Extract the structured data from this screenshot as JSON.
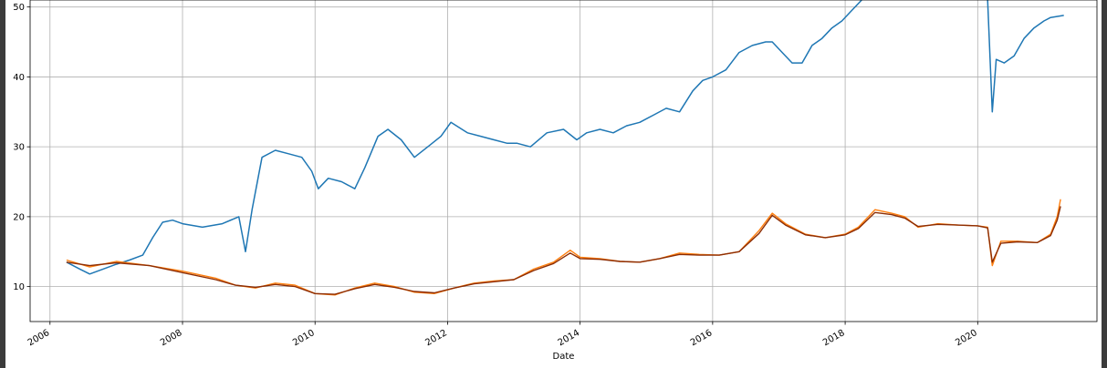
{
  "chart_data": {
    "type": "line",
    "title": "",
    "xlabel": "Date",
    "ylabel": "",
    "grid": true,
    "legend": "none",
    "xlim": [
      2005.7,
      2021.8
    ],
    "ylim": [
      5,
      51
    ],
    "x_ticks": [
      "2006",
      "2008",
      "2010",
      "2012",
      "2014",
      "2016",
      "2018",
      "2020"
    ],
    "y_ticks": [
      "10",
      "20",
      "30",
      "40",
      "50"
    ],
    "series": [
      {
        "color": "#1f77b4",
        "x": [
          2006.25,
          2006.45,
          2006.6,
          2006.8,
          2007.0,
          2007.2,
          2007.4,
          2007.55,
          2007.7,
          2007.85,
          2008.0,
          2008.3,
          2008.6,
          2008.85,
          2008.95,
          2009.05,
          2009.2,
          2009.4,
          2009.6,
          2009.8,
          2009.95,
          2010.05,
          2010.2,
          2010.4,
          2010.6,
          2010.75,
          2010.95,
          2011.1,
          2011.3,
          2011.5,
          2011.7,
          2011.9,
          2012.05,
          2012.3,
          2012.5,
          2012.7,
          2012.9,
          2013.05,
          2013.25,
          2013.5,
          2013.75,
          2013.95,
          2014.1,
          2014.3,
          2014.5,
          2014.7,
          2014.9,
          2015.1,
          2015.3,
          2015.5,
          2015.7,
          2015.85,
          2016.0,
          2016.2,
          2016.4,
          2016.6,
          2016.8,
          2016.9,
          2017.05,
          2017.2,
          2017.35,
          2017.5,
          2017.65,
          2017.8,
          2017.95,
          2018.1,
          2018.25
        ],
        "y": [
          13.5,
          12.5,
          11.8,
          12.5,
          13.2,
          13.8,
          14.5,
          17.0,
          19.2,
          19.5,
          19.0,
          18.5,
          19.0,
          20.0,
          15.0,
          21.0,
          28.5,
          29.5,
          29.0,
          28.5,
          26.5,
          24.0,
          25.5,
          25.0,
          24.0,
          27.0,
          31.5,
          32.5,
          31.0,
          28.5,
          30.0,
          31.5,
          33.5,
          32.0,
          31.5,
          31.0,
          30.5,
          30.5,
          30.0,
          32.0,
          32.5,
          31.0,
          32.0,
          32.5,
          32.0,
          33.0,
          33.5,
          34.5,
          35.5,
          35.0,
          38.0,
          39.5,
          40.0,
          41.0,
          43.5,
          44.5,
          45.0,
          45.0,
          43.5,
          42.0,
          42.0,
          44.5,
          45.5,
          47.0,
          48.0,
          49.5,
          51.0
        ]
      },
      {
        "color": "#1f77b4",
        "x": [
          2020.15,
          2020.22,
          2020.28,
          2020.4,
          2020.55,
          2020.7,
          2020.85,
          2021.0,
          2021.1,
          2021.3
        ],
        "y": [
          51.0,
          35.0,
          42.5,
          42.0,
          43.0,
          45.5,
          47.0,
          48.0,
          48.5,
          48.8
        ]
      },
      {
        "color": "#ff7f0e",
        "x": [
          2006.25,
          2006.6,
          2007.0,
          2007.5,
          2008.0,
          2008.5,
          2008.8,
          2009.1,
          2009.4,
          2009.7,
          2010.0,
          2010.3,
          2010.6,
          2010.9,
          2011.2,
          2011.5,
          2011.8,
          2012.1,
          2012.4,
          2012.7,
          2013.0,
          2013.3,
          2013.6,
          2013.85,
          2014.0,
          2014.3,
          2014.6,
          2014.9,
          2015.2,
          2015.5,
          2015.8,
          2016.1,
          2016.4,
          2016.7,
          2016.9,
          2017.1,
          2017.4,
          2017.7,
          2018.0,
          2018.2,
          2018.45,
          2018.7,
          2018.9,
          2019.1,
          2019.4,
          2019.7,
          2020.0,
          2020.15,
          2020.22,
          2020.35,
          2020.6,
          2020.9,
          2021.1,
          2021.2,
          2021.25
        ],
        "y": [
          13.8,
          12.8,
          13.6,
          13.0,
          12.2,
          11.2,
          10.2,
          9.8,
          10.5,
          10.2,
          9.0,
          8.8,
          9.8,
          10.5,
          10.0,
          9.2,
          9.0,
          9.8,
          10.5,
          10.8,
          11.0,
          12.5,
          13.5,
          15.2,
          14.2,
          14.0,
          13.6,
          13.5,
          14.0,
          14.8,
          14.6,
          14.5,
          15.0,
          18.0,
          20.5,
          19.0,
          17.5,
          17.0,
          17.5,
          18.5,
          21.0,
          20.5,
          20.0,
          18.5,
          19.0,
          18.8,
          18.7,
          18.5,
          13.0,
          16.5,
          16.5,
          16.3,
          17.5,
          20.0,
          22.5
        ]
      },
      {
        "color": "#8c2d04",
        "x": [
          2006.25,
          2006.6,
          2007.0,
          2007.5,
          2008.0,
          2008.5,
          2008.8,
          2009.1,
          2009.4,
          2009.7,
          2010.0,
          2010.3,
          2010.6,
          2010.9,
          2011.2,
          2011.5,
          2011.8,
          2012.1,
          2012.4,
          2012.7,
          2013.0,
          2013.3,
          2013.6,
          2013.85,
          2014.0,
          2014.3,
          2014.6,
          2014.9,
          2015.2,
          2015.5,
          2015.8,
          2016.1,
          2016.4,
          2016.7,
          2016.9,
          2017.1,
          2017.4,
          2017.7,
          2018.0,
          2018.2,
          2018.45,
          2018.7,
          2018.9,
          2019.1,
          2019.4,
          2019.7,
          2020.0,
          2020.15,
          2020.22,
          2020.35,
          2020.6,
          2020.9,
          2021.1,
          2021.2,
          2021.25
        ],
        "y": [
          13.5,
          13.0,
          13.4,
          13.0,
          12.0,
          11.0,
          10.2,
          9.9,
          10.3,
          10.0,
          9.0,
          8.9,
          9.7,
          10.3,
          9.9,
          9.3,
          9.1,
          9.8,
          10.4,
          10.7,
          11.0,
          12.3,
          13.3,
          14.8,
          14.0,
          13.9,
          13.6,
          13.5,
          14.0,
          14.6,
          14.5,
          14.5,
          15.0,
          17.6,
          20.2,
          18.8,
          17.4,
          17.0,
          17.4,
          18.3,
          20.6,
          20.3,
          19.8,
          18.6,
          18.9,
          18.8,
          18.7,
          18.4,
          13.5,
          16.2,
          16.4,
          16.3,
          17.3,
          19.5,
          21.5
        ]
      }
    ]
  }
}
